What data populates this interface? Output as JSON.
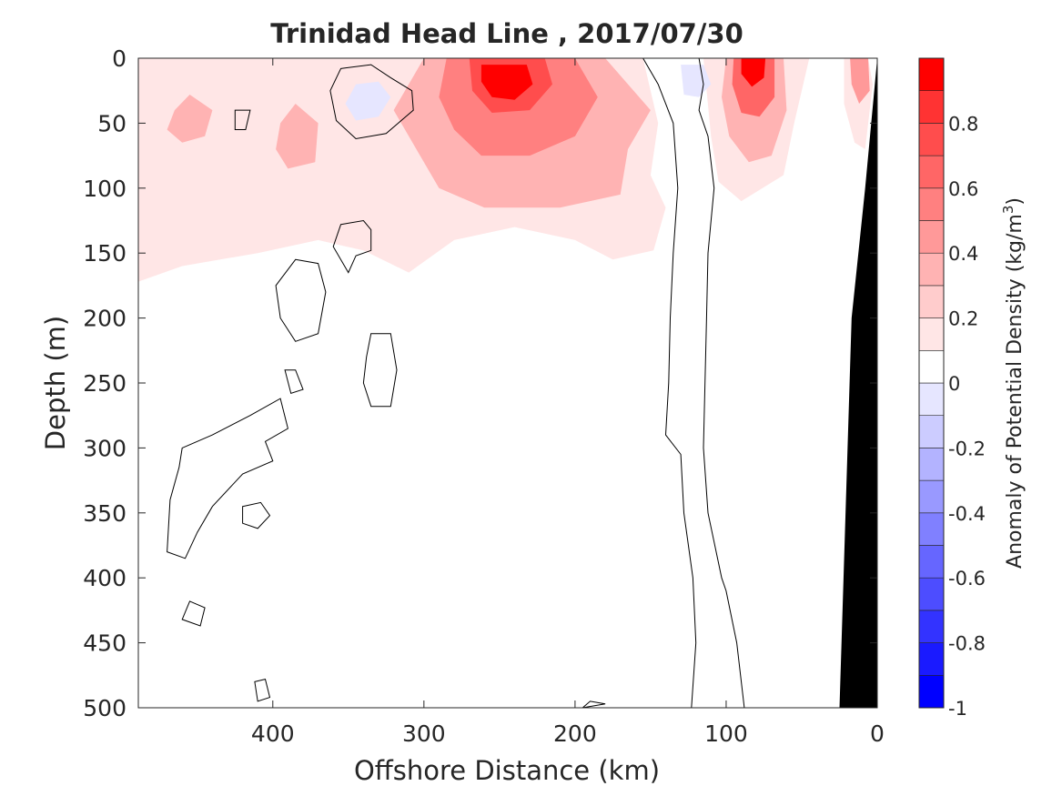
{
  "chart_data": {
    "type": "heatmap",
    "title": "Trinidad Head Line , 2017/07/30",
    "xlabel": "Offshore Distance (km)",
    "ylabel": "Depth (m)",
    "colorbar_label": "Anomaly of Potential Density (kg/m",
    "colorbar_label_sup": "3",
    "colorbar_label_suffix": ")",
    "xlim": [
      489,
      0
    ],
    "ylim": [
      0,
      500
    ],
    "x_ticks": [
      {
        "value": 400,
        "label": "400"
      },
      {
        "value": 300,
        "label": "300"
      },
      {
        "value": 200,
        "label": "200"
      },
      {
        "value": 100,
        "label": "100"
      },
      {
        "value": 0,
        "label": "0"
      }
    ],
    "y_ticks": [
      {
        "value": 0,
        "label": "0"
      },
      {
        "value": 50,
        "label": "50"
      },
      {
        "value": 100,
        "label": "100"
      },
      {
        "value": 150,
        "label": "150"
      },
      {
        "value": 200,
        "label": "200"
      },
      {
        "value": 250,
        "label": "250"
      },
      {
        "value": 300,
        "label": "300"
      },
      {
        "value": 350,
        "label": "350"
      },
      {
        "value": 400,
        "label": "400"
      },
      {
        "value": 450,
        "label": "450"
      },
      {
        "value": 500,
        "label": "500"
      }
    ],
    "colorbar": {
      "clim": [
        -1,
        1
      ],
      "levels": [
        {
          "from": -1.0,
          "to": -0.9,
          "color": "#0000ff"
        },
        {
          "from": -0.9,
          "to": -0.8,
          "color": "#1a1aff"
        },
        {
          "from": -0.8,
          "to": -0.7,
          "color": "#3333ff"
        },
        {
          "from": -0.7,
          "to": -0.6,
          "color": "#4d4dff"
        },
        {
          "from": -0.6,
          "to": -0.5,
          "color": "#6666ff"
        },
        {
          "from": -0.5,
          "to": -0.4,
          "color": "#8080ff"
        },
        {
          "from": -0.4,
          "to": -0.3,
          "color": "#9999ff"
        },
        {
          "from": -0.3,
          "to": -0.2,
          "color": "#b3b3ff"
        },
        {
          "from": -0.2,
          "to": -0.1,
          "color": "#ccccff"
        },
        {
          "from": -0.1,
          "to": 0.0,
          "color": "#e6e6ff"
        },
        {
          "from": 0.0,
          "to": 0.1,
          "color": "#ffffff"
        },
        {
          "from": 0.1,
          "to": 0.2,
          "color": "#ffe6e6"
        },
        {
          "from": 0.2,
          "to": 0.3,
          "color": "#ffcccc"
        },
        {
          "from": 0.3,
          "to": 0.4,
          "color": "#ffb3b3"
        },
        {
          "from": 0.4,
          "to": 0.5,
          "color": "#ff9999"
        },
        {
          "from": 0.5,
          "to": 0.6,
          "color": "#ff8080"
        },
        {
          "from": 0.6,
          "to": 0.7,
          "color": "#ff6666"
        },
        {
          "from": 0.7,
          "to": 0.8,
          "color": "#ff4d4d"
        },
        {
          "from": 0.8,
          "to": 0.9,
          "color": "#ff3333"
        },
        {
          "from": 0.9,
          "to": 1.0,
          "color": "#ff0000"
        }
      ],
      "ticks": [
        {
          "value": 0.8,
          "label": "0.8"
        },
        {
          "value": 0.6,
          "label": "0.6"
        },
        {
          "value": 0.4,
          "label": "0.4"
        },
        {
          "value": 0.2,
          "label": "0.2"
        },
        {
          "value": 0.0,
          "label": "0"
        },
        {
          "value": -0.2,
          "label": "-0.2"
        },
        {
          "value": -0.4,
          "label": "-0.4"
        },
        {
          "value": -0.6,
          "label": "-0.6"
        },
        {
          "value": -0.8,
          "label": "-0.8"
        },
        {
          "value": -1.0,
          "label": "-1"
        }
      ]
    },
    "anomaly_regions": [
      {
        "name": "upper-positive-band",
        "value": 0.15,
        "points": [
          [
            489,
            0
          ],
          [
            320,
            0
          ],
          [
            300,
            0
          ],
          [
            180,
            0
          ],
          [
            155,
            0
          ],
          [
            145,
            50
          ],
          [
            150,
            90
          ],
          [
            140,
            115
          ],
          [
            148,
            148
          ],
          [
            175,
            155
          ],
          [
            200,
            140
          ],
          [
            240,
            130
          ],
          [
            280,
            140
          ],
          [
            310,
            165
          ],
          [
            340,
            148
          ],
          [
            370,
            140
          ],
          [
            410,
            150
          ],
          [
            460,
            160
          ],
          [
            489,
            172
          ]
        ]
      },
      {
        "name": "mid-shelf-band",
        "value": 0.15,
        "points": [
          [
            115,
            0
          ],
          [
            45,
            0
          ],
          [
            55,
            50
          ],
          [
            62,
            90
          ],
          [
            90,
            110
          ],
          [
            105,
            95
          ],
          [
            110,
            60
          ]
        ]
      },
      {
        "name": "coastal-band",
        "value": 0.15,
        "points": [
          [
            22,
            0
          ],
          [
            6,
            0
          ],
          [
            3,
            20
          ],
          [
            8,
            70
          ],
          [
            15,
            65
          ],
          [
            22,
            35
          ]
        ]
      },
      {
        "name": "offshore-core-weak",
        "value": 0.35,
        "points": [
          [
            465,
            40
          ],
          [
            455,
            28
          ],
          [
            440,
            40
          ],
          [
            445,
            60
          ],
          [
            460,
            65
          ],
          [
            470,
            55
          ]
        ]
      },
      {
        "name": "offshore-core-weak-2",
        "value": 0.35,
        "points": [
          [
            395,
            50
          ],
          [
            385,
            35
          ],
          [
            370,
            50
          ],
          [
            372,
            80
          ],
          [
            390,
            85
          ],
          [
            398,
            70
          ]
        ]
      },
      {
        "name": "main-core-outer",
        "value": 0.35,
        "points": [
          [
            300,
            0
          ],
          [
            180,
            0
          ],
          [
            150,
            40
          ],
          [
            165,
            70
          ],
          [
            170,
            105
          ],
          [
            210,
            115
          ],
          [
            260,
            115
          ],
          [
            290,
            100
          ],
          [
            305,
            70
          ],
          [
            320,
            40
          ]
        ]
      },
      {
        "name": "main-core-mid",
        "value": 0.55,
        "points": [
          [
            285,
            0
          ],
          [
            200,
            0
          ],
          [
            185,
            30
          ],
          [
            200,
            60
          ],
          [
            230,
            75
          ],
          [
            262,
            75
          ],
          [
            280,
            55
          ],
          [
            290,
            30
          ]
        ]
      },
      {
        "name": "main-core-inner",
        "value": 0.75,
        "points": [
          [
            270,
            0
          ],
          [
            220,
            0
          ],
          [
            215,
            20
          ],
          [
            230,
            40
          ],
          [
            255,
            42
          ],
          [
            268,
            25
          ]
        ]
      },
      {
        "name": "main-core-peak",
        "value": 0.95,
        "points": [
          [
            262,
            5
          ],
          [
            232,
            5
          ],
          [
            228,
            20
          ],
          [
            240,
            32
          ],
          [
            255,
            30
          ],
          [
            262,
            18
          ]
        ]
      },
      {
        "name": "shelf-core-outer",
        "value": 0.35,
        "points": [
          [
            100,
            0
          ],
          [
            62,
            0
          ],
          [
            60,
            40
          ],
          [
            70,
            75
          ],
          [
            85,
            80
          ],
          [
            98,
            60
          ],
          [
            103,
            30
          ]
        ]
      },
      {
        "name": "shelf-core-inner",
        "value": 0.65,
        "points": [
          [
            95,
            0
          ],
          [
            68,
            0
          ],
          [
            68,
            30
          ],
          [
            78,
            45
          ],
          [
            90,
            42
          ],
          [
            96,
            20
          ]
        ]
      },
      {
        "name": "shelf-core-peak",
        "value": 0.95,
        "points": [
          [
            90,
            0
          ],
          [
            74,
            0
          ],
          [
            75,
            15
          ],
          [
            83,
            22
          ],
          [
            90,
            12
          ]
        ]
      },
      {
        "name": "coastal-core",
        "value": 0.45,
        "points": [
          [
            18,
            0
          ],
          [
            6,
            0
          ],
          [
            5,
            25
          ],
          [
            12,
            35
          ],
          [
            17,
            20
          ]
        ]
      },
      {
        "name": "neg-eddy-offshore",
        "value": -0.05,
        "points": [
          [
            345,
            20
          ],
          [
            330,
            18
          ],
          [
            322,
            30
          ],
          [
            330,
            45
          ],
          [
            345,
            48
          ],
          [
            352,
            35
          ]
        ]
      },
      {
        "name": "neg-eddy-slope",
        "value": -0.05,
        "points": [
          [
            130,
            5
          ],
          [
            115,
            5
          ],
          [
            110,
            20
          ],
          [
            118,
            30
          ],
          [
            128,
            28
          ]
        ]
      }
    ],
    "zero_contours": [
      {
        "name": "contour-eddy-offshore",
        "points": [
          [
            355,
            8
          ],
          [
            335,
            5
          ],
          [
            322,
            15
          ],
          [
            308,
            25
          ],
          [
            307,
            40
          ],
          [
            325,
            58
          ],
          [
            345,
            62
          ],
          [
            358,
            48
          ],
          [
            362,
            25
          ]
        ]
      },
      {
        "name": "contour-small-1",
        "points": [
          [
            425,
            40
          ],
          [
            415,
            40
          ],
          [
            418,
            55
          ],
          [
            425,
            55
          ]
        ]
      },
      {
        "name": "contour-ring-130",
        "points": [
          [
            355,
            128
          ],
          [
            340,
            125
          ],
          [
            335,
            132
          ],
          [
            335,
            148
          ],
          [
            345,
            152
          ],
          [
            350,
            165
          ],
          [
            360,
            145
          ]
        ]
      },
      {
        "name": "contour-ring-200",
        "points": [
          [
            385,
            155
          ],
          [
            370,
            158
          ],
          [
            365,
            180
          ],
          [
            370,
            212
          ],
          [
            385,
            218
          ],
          [
            395,
            200
          ],
          [
            398,
            175
          ]
        ]
      },
      {
        "name": "contour-ring-250",
        "points": [
          [
            335,
            212
          ],
          [
            322,
            212
          ],
          [
            318,
            240
          ],
          [
            322,
            268
          ],
          [
            335,
            268
          ],
          [
            340,
            250
          ],
          [
            338,
            230
          ]
        ]
      },
      {
        "name": "contour-small-255",
        "points": [
          [
            392,
            240
          ],
          [
            385,
            240
          ],
          [
            380,
            255
          ],
          [
            388,
            258
          ]
        ]
      },
      {
        "name": "contour-deep-offshore",
        "points": [
          [
            460,
            300
          ],
          [
            440,
            290
          ],
          [
            415,
            275
          ],
          [
            395,
            262
          ],
          [
            390,
            285
          ],
          [
            405,
            295
          ],
          [
            400,
            310
          ],
          [
            420,
            320
          ],
          [
            440,
            345
          ],
          [
            450,
            365
          ],
          [
            458,
            385
          ],
          [
            470,
            380
          ],
          [
            468,
            340
          ],
          [
            462,
            315
          ]
        ]
      },
      {
        "name": "contour-small-350",
        "points": [
          [
            420,
            345
          ],
          [
            408,
            342
          ],
          [
            402,
            352
          ],
          [
            410,
            362
          ],
          [
            420,
            358
          ]
        ]
      },
      {
        "name": "contour-small-430",
        "points": [
          [
            455,
            418
          ],
          [
            445,
            423
          ],
          [
            448,
            437
          ],
          [
            460,
            432
          ]
        ]
      },
      {
        "name": "contour-small-480",
        "points": [
          [
            412,
            480
          ],
          [
            405,
            478
          ],
          [
            402,
            492
          ],
          [
            410,
            495
          ]
        ]
      },
      {
        "name": "contour-small-500",
        "points": [
          [
            190,
            495
          ],
          [
            180,
            497
          ],
          [
            195,
            500
          ]
        ]
      }
    ],
    "zero_lines": [
      {
        "name": "front-line-outer",
        "points": [
          [
            155,
            0
          ],
          [
            145,
            20
          ],
          [
            135,
            50
          ],
          [
            132,
            100
          ],
          [
            135,
            150
          ],
          [
            137,
            200
          ],
          [
            138,
            250
          ],
          [
            140,
            290
          ],
          [
            130,
            305
          ],
          [
            128,
            350
          ],
          [
            122,
            400
          ],
          [
            120,
            450
          ],
          [
            123,
            500
          ]
        ]
      },
      {
        "name": "front-line-inner",
        "points": [
          [
            118,
            0
          ],
          [
            115,
            20
          ],
          [
            118,
            40
          ],
          [
            112,
            60
          ],
          [
            108,
            100
          ],
          [
            112,
            150
          ],
          [
            113,
            200
          ],
          [
            114,
            250
          ],
          [
            115,
            300
          ],
          [
            112,
            350
          ],
          [
            103,
            400
          ],
          [
            100,
            410
          ],
          [
            93,
            450
          ],
          [
            88,
            500
          ]
        ]
      }
    ],
    "bathymetry": {
      "points": [
        [
          0,
          0
        ],
        [
          0,
          500
        ],
        [
          25,
          500
        ],
        [
          17,
          200
        ],
        [
          8,
          100
        ],
        [
          0,
          0
        ]
      ],
      "color": "#000000"
    }
  }
}
